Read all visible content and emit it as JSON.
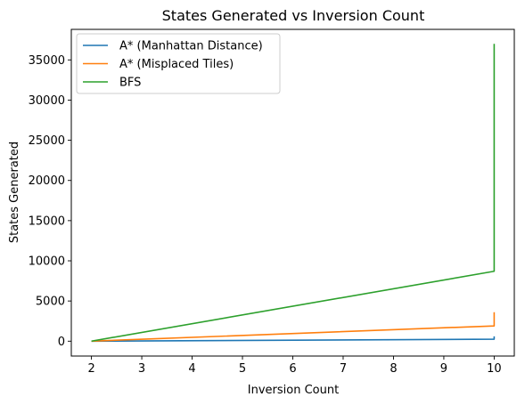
{
  "chart_data": {
    "type": "line",
    "title": "States Generated vs Inversion Count",
    "xlabel": "Inversion Count",
    "ylabel": "States Generated",
    "xlim": [
      1.6,
      10.4
    ],
    "ylim": [
      -1850,
      38800
    ],
    "xticks": [
      2,
      3,
      4,
      5,
      6,
      7,
      8,
      9,
      10
    ],
    "yticks": [
      0,
      5000,
      10000,
      15000,
      20000,
      25000,
      30000,
      35000
    ],
    "grid": false,
    "legend_position": "upper left",
    "series": [
      {
        "name": "A* (Manhattan Distance)",
        "color": "#1f77b4",
        "x": [
          2,
          10,
          10
        ],
        "y": [
          2,
          250,
          600
        ]
      },
      {
        "name": "A* (Misplaced Tiles)",
        "color": "#ff7f0e",
        "x": [
          2,
          10,
          10
        ],
        "y": [
          2,
          1900,
          3600
        ]
      },
      {
        "name": "BFS",
        "color": "#2ca02c",
        "x": [
          2,
          10,
          10
        ],
        "y": [
          4,
          8700,
          37000
        ]
      }
    ]
  }
}
